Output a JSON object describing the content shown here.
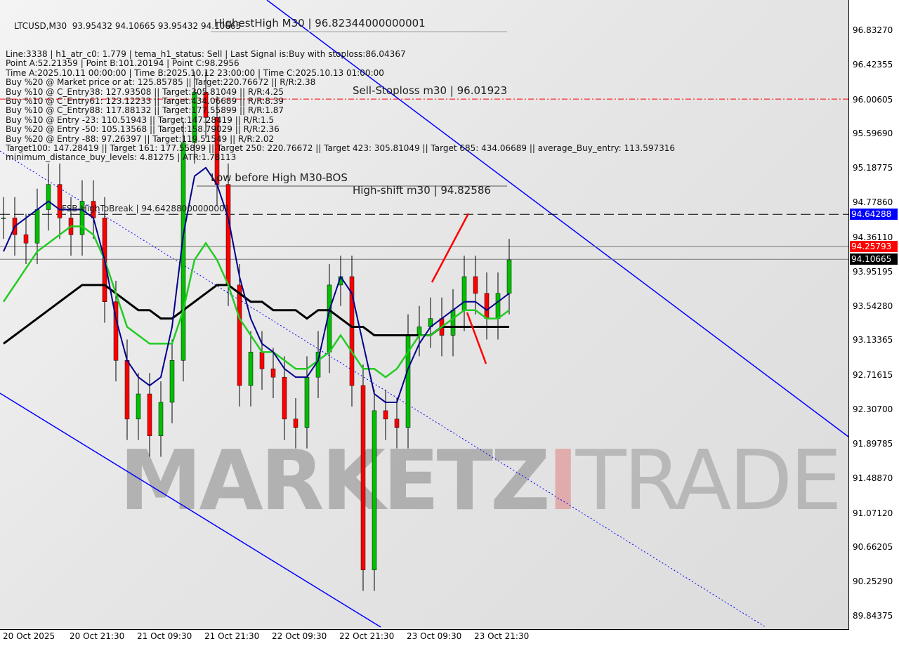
{
  "header": {
    "symbol_line": "LTCUSD,M30  93.95432 94.10665 93.95432 94.10665",
    "info_lines": [
      "Line:3338 | h1_atr_c0: 1.779 | tema_h1_status: Sell | Last Signal is:Buy with stoploss:86.04367",
      "Point A:52.21359 | Point B:101.20194 | Point C:98.2956",
      "Time A:2025.10.11 00:00:00 | Time B:2025.10.12 23:00:00 | Time C:2025.10.13 01:00:00",
      "Buy %20 @ Market price or at: 125.85785 || Target:220.76672 || R/R:2.38",
      "Buy %10 @ C_Entry38: 127.93508 || Target:305.81049 || R/R:4.25",
      "Buy %10 @ C_Entry61: 123.12233 || Target:434.06689 || R/R:8.39",
      "Buy %10 @ C_Entry88: 117.88132 || Target:177.55899 || R/R:1.87",
      "Buy %10 @ Entry -23: 110.51943 || Target:147.28419 || R/R:1.5",
      "Buy %20 @ Entry -50: 105.13568 || Target:158.79029 || R/R:2.36",
      "Buy %20 @ Entry -88: 97.26397 || Target:119.51549 || R/R:2.02",
      "Target100: 147.28419 || Target 161: 177.55899 || Target 250: 220.76672 || Target 423: 305.81049 || Target 685: 434.06689 || average_Buy_entry: 113.597316",
      "minimum_distance_buy_levels: 4.81275 | ATR:1.78113"
    ]
  },
  "annotations": {
    "highest_high": "HighestHigh   M30 | 96.82344000000001",
    "sell_stoploss": "Sell-Stoploss m30 | 96.01923",
    "low_before_high": "Low before High   M30-BOS",
    "high_shift": "High-shift m30 | 94.82586",
    "fsb": "FSB-HighToBreak | 94.64288000000001"
  },
  "watermark": {
    "part1": "MARKETZ",
    "part2": "I",
    "part3": "TRADE"
  },
  "colors": {
    "bull": "#00c000",
    "bear": "#ff0000",
    "channel": "#0000ff",
    "ma_fast": "#00008b",
    "ma_mid": "#22cc22",
    "ma_slow": "#000000",
    "stoploss": "#ff0000",
    "tag_blue": "#0000ff",
    "tag_red": "#ff0000",
    "tag_black": "#000000"
  },
  "chart_data": {
    "type": "candlestick",
    "symbol": "LTCUSD",
    "timeframe": "M30",
    "ylim": [
      89.84375,
      96.8327
    ],
    "y_ticks": [
      "96.83270",
      "96.42355",
      "96.00605",
      "95.59690",
      "95.18775",
      "94.77860",
      "94.36110",
      "93.95195",
      "93.54280",
      "93.13365",
      "92.71615",
      "92.30700",
      "91.89785",
      "91.48870",
      "91.07120",
      "90.66205",
      "90.25290",
      "89.84375"
    ],
    "x_ticks": [
      "20 Oct 2025",
      "20 Oct 21:30",
      "21 Oct 09:30",
      "21 Oct 21:30",
      "22 Oct 09:30",
      "22 Oct 21:30",
      "23 Oct 09:30",
      "23 Oct 21:30"
    ],
    "closes": [
      94.6,
      94.4,
      94.3,
      94.7,
      95.0,
      94.6,
      94.4,
      94.8,
      94.6,
      93.6,
      92.9,
      92.2,
      92.5,
      92.0,
      92.4,
      92.9,
      95.5,
      96.1,
      95.8,
      95.0,
      93.8,
      92.6,
      93.0,
      92.8,
      92.7,
      92.2,
      92.1,
      92.7,
      93.0,
      93.8,
      93.9,
      92.6,
      90.4,
      92.3,
      92.2,
      92.1,
      93.2,
      93.3,
      93.4,
      93.2,
      93.5,
      93.9,
      93.7,
      93.4,
      93.7,
      94.1
    ],
    "ma_fast": [
      94.2,
      94.5,
      94.6,
      94.7,
      94.8,
      94.7,
      94.7,
      94.7,
      94.6,
      94.1,
      93.4,
      92.9,
      92.7,
      92.6,
      92.7,
      93.3,
      94.4,
      95.1,
      95.2,
      95.0,
      94.6,
      93.9,
      93.4,
      93.1,
      93.0,
      92.8,
      92.7,
      92.7,
      92.9,
      93.5,
      93.9,
      93.7,
      93.1,
      92.5,
      92.4,
      92.4,
      92.8,
      93.1,
      93.3,
      93.4,
      93.5,
      93.6,
      93.6,
      93.5,
      93.6,
      93.7
    ],
    "ma_mid": [
      93.6,
      93.8,
      94.0,
      94.2,
      94.3,
      94.4,
      94.5,
      94.5,
      94.4,
      94.1,
      93.7,
      93.3,
      93.2,
      93.1,
      93.1,
      93.1,
      93.5,
      94.1,
      94.3,
      94.1,
      93.8,
      93.4,
      93.2,
      93.0,
      93.0,
      92.9,
      92.8,
      92.8,
      92.9,
      93.0,
      93.2,
      93.0,
      92.8,
      92.8,
      92.7,
      92.8,
      93.0,
      93.2,
      93.2,
      93.3,
      93.4,
      93.5,
      93.5,
      93.4,
      93.4,
      93.5
    ],
    "ma_slow": [
      93.1,
      93.2,
      93.3,
      93.4,
      93.5,
      93.6,
      93.7,
      93.8,
      93.8,
      93.8,
      93.7,
      93.6,
      93.5,
      93.5,
      93.4,
      93.4,
      93.5,
      93.6,
      93.7,
      93.8,
      93.8,
      93.7,
      93.6,
      93.6,
      93.5,
      93.5,
      93.5,
      93.4,
      93.5,
      93.5,
      93.4,
      93.3,
      93.3,
      93.2,
      93.2,
      93.2,
      93.2,
      93.2,
      93.2,
      93.3,
      93.3,
      93.3,
      93.3,
      93.3,
      93.3,
      93.3
    ],
    "levels": {
      "highest_high": 96.82344,
      "sell_stoploss": 96.01923,
      "high_shift": 94.82586,
      "fsb_high_to_break": 94.64288,
      "red_line": 94.25793,
      "last_price": 94.10665
    },
    "price_tags": [
      "94.64288",
      "94.25793",
      "94.10665"
    ]
  }
}
